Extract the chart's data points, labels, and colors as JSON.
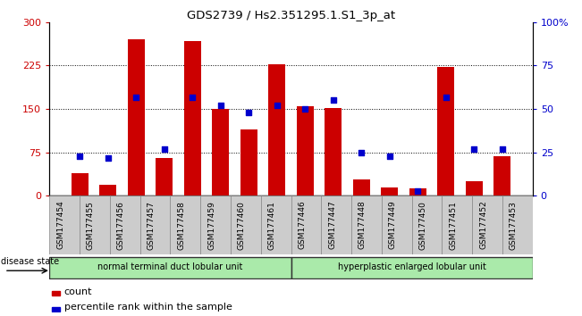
{
  "title": "GDS2739 / Hs2.351295.1.S1_3p_at",
  "samples": [
    "GSM177454",
    "GSM177455",
    "GSM177456",
    "GSM177457",
    "GSM177458",
    "GSM177459",
    "GSM177460",
    "GSM177461",
    "GSM177446",
    "GSM177447",
    "GSM177448",
    "GSM177449",
    "GSM177450",
    "GSM177451",
    "GSM177452",
    "GSM177453"
  ],
  "counts": [
    40,
    20,
    270,
    65,
    268,
    150,
    115,
    228,
    155,
    152,
    28,
    15,
    13,
    222,
    25,
    68
  ],
  "percentiles": [
    23,
    22,
    57,
    27,
    57,
    52,
    48,
    52,
    50,
    55,
    25,
    23,
    3,
    57,
    27,
    27
  ],
  "group1_label": "normal terminal duct lobular unit",
  "group2_label": "hyperplastic enlarged lobular unit",
  "group1_indices": [
    0,
    1,
    2,
    3,
    4,
    5,
    6,
    7
  ],
  "group2_indices": [
    8,
    9,
    10,
    11,
    12,
    13,
    14,
    15
  ],
  "disease_state_label": "disease state",
  "legend_count": "count",
  "legend_percentile": "percentile rank within the sample",
  "bar_color": "#CC0000",
  "dot_color": "#0000CC",
  "group1_color": "#AAEAAA",
  "group2_color": "#AAEAAA",
  "cell_bg": "#CCCCCC",
  "ylim_left": [
    0,
    300
  ],
  "ylim_right": [
    0,
    100
  ],
  "yticks_left": [
    0,
    75,
    150,
    225,
    300
  ],
  "yticks_right": [
    0,
    25,
    50,
    75,
    100
  ],
  "background_color": "#FFFFFF",
  "bar_width": 0.6,
  "figwidth": 6.51,
  "figheight": 3.54
}
